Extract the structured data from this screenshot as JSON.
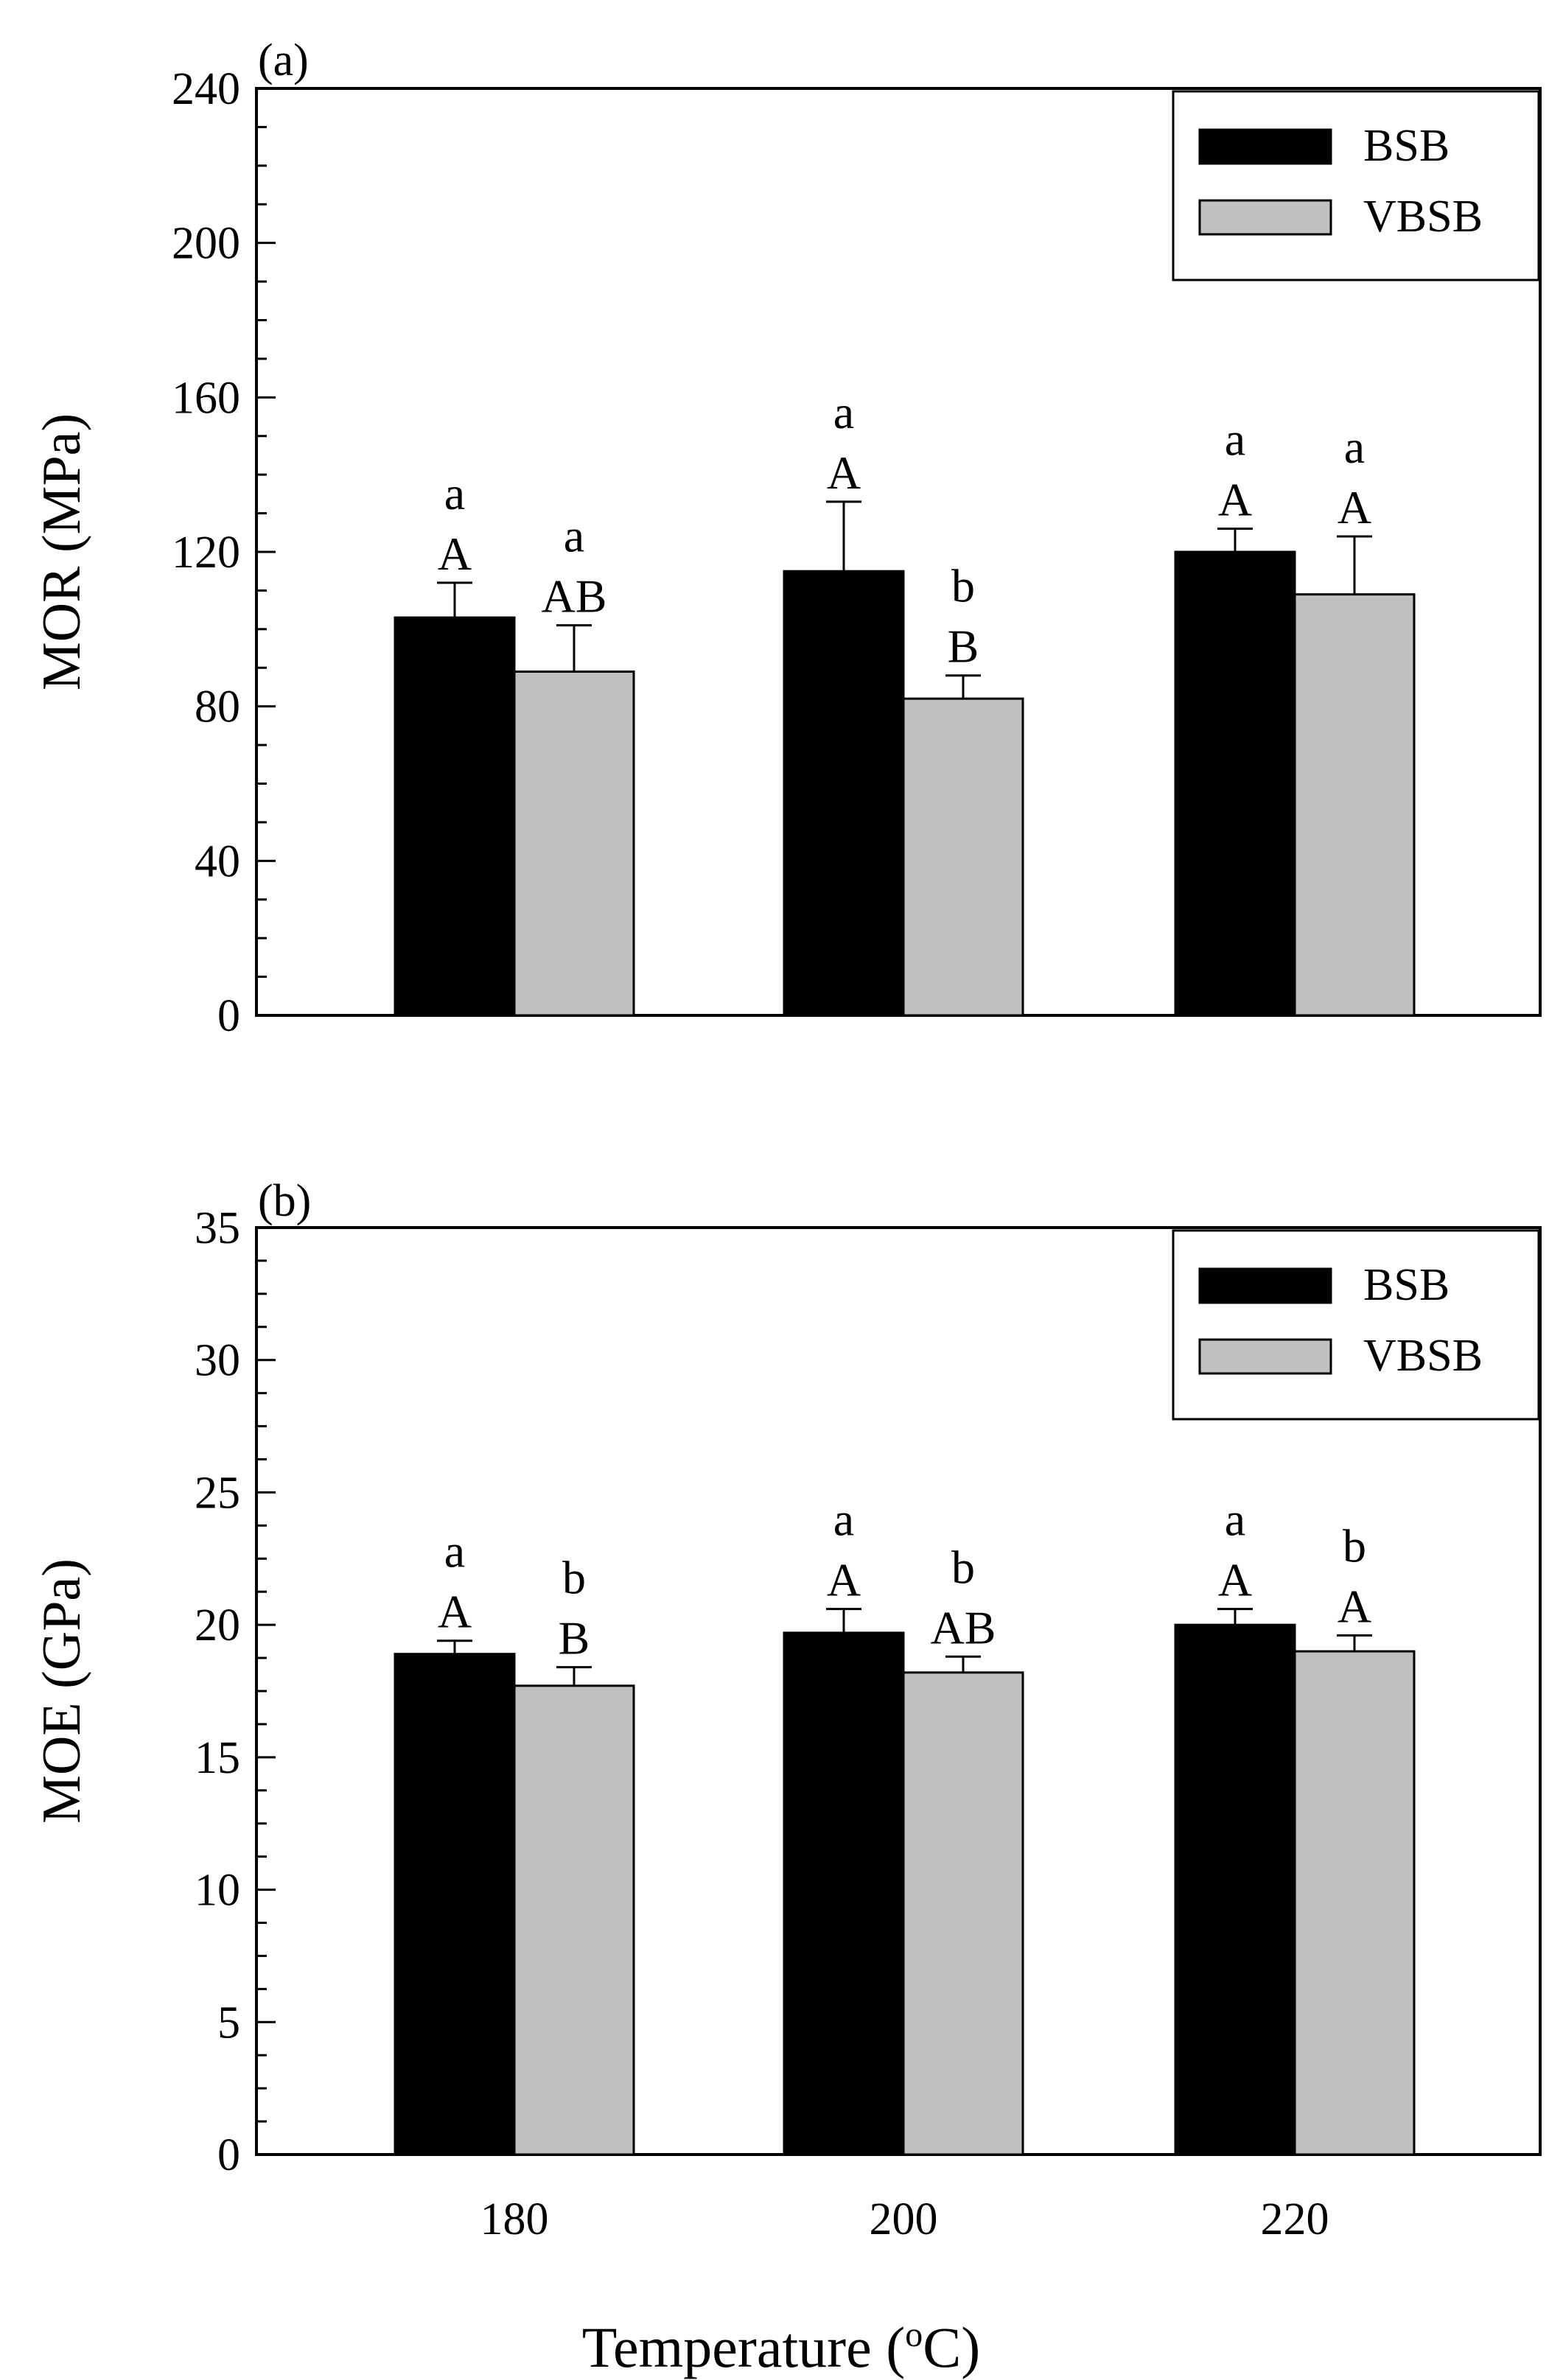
{
  "chart_data": [
    {
      "panel": "(a)",
      "type": "bar",
      "ylabel": "MOR (MPa)",
      "ylim": [
        0,
        240
      ],
      "yticks": [
        "0",
        "40",
        "80",
        "120",
        "160",
        "200",
        "240"
      ],
      "categories": [
        "180",
        "200",
        "220"
      ],
      "show_xticklabels": false,
      "legend_position": "top-right",
      "series": [
        {
          "name": "BSB",
          "color": "#000000",
          "values": [
            103,
            115,
            120
          ],
          "errors": [
            9,
            18,
            6
          ]
        },
        {
          "name": "VBSB",
          "color": "#c0c0c0",
          "values": [
            89,
            82,
            109
          ],
          "errors": [
            12,
            6,
            15
          ]
        }
      ],
      "letters": [
        [
          "aA",
          "aA",
          "aA"
        ],
        [
          "aAB",
          "bB",
          "aA"
        ]
      ]
    },
    {
      "panel": "(b)",
      "type": "bar",
      "ylabel": "MOE (GPa)",
      "ylim": [
        0,
        35
      ],
      "yticks": [
        "0",
        "5",
        "10",
        "15",
        "20",
        "25",
        "30",
        "35"
      ],
      "categories": [
        "180",
        "200",
        "220"
      ],
      "show_xticklabels": true,
      "legend_position": "top-right",
      "series": [
        {
          "name": "BSB",
          "color": "#000000",
          "values": [
            18.9,
            19.7,
            20.0
          ],
          "errors": [
            0.5,
            0.9,
            0.6
          ]
        },
        {
          "name": "VBSB",
          "color": "#c0c0c0",
          "values": [
            17.7,
            18.2,
            19.0
          ],
          "errors": [
            0.7,
            0.6,
            0.6
          ]
        }
      ],
      "letters": [
        [
          "aA",
          "aA",
          "aA"
        ],
        [
          "bB",
          "bAB",
          "bA"
        ]
      ]
    }
  ],
  "xlabel_main": "Temperature (",
  "xlabel_sup": "o",
  "xlabel_end": "C)"
}
